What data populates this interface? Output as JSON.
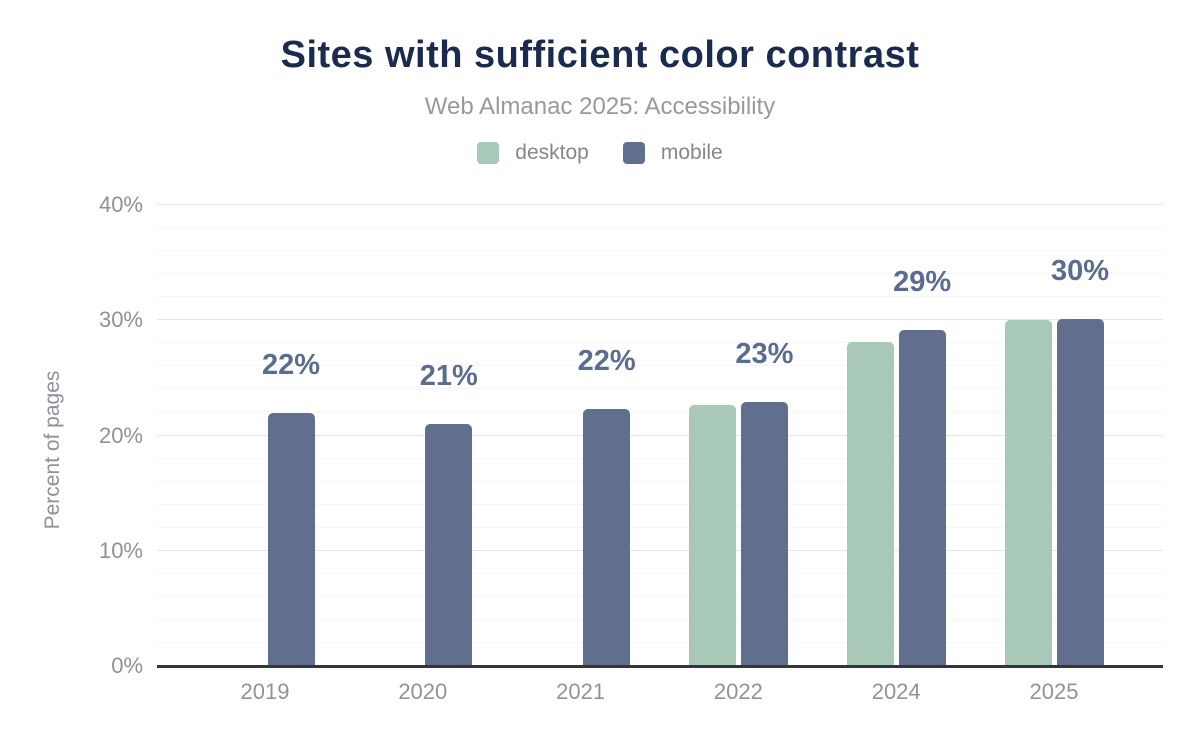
{
  "header": {
    "title": "Sites with sufficient color contrast",
    "subtitle": "Web Almanac 2025: Accessibility"
  },
  "legend": {
    "items": [
      {
        "label": "desktop",
        "color": "#a8c9b8"
      },
      {
        "label": "mobile",
        "color": "#5f6f8d"
      }
    ]
  },
  "colors": {
    "title_text": "#1b2b4d",
    "subtitle_text": "#98999d",
    "axis_text": "#8d9199",
    "data_label_text": "#5a6c8f",
    "axis_line": "#35353a",
    "grid_major": "#e4e4e7",
    "grid_minor": "#f5f5f7",
    "desktop_bar": "#a8c9b8",
    "mobile_bar": "#5f6f8d"
  },
  "chart_data": {
    "type": "bar",
    "title": "Sites with sufficient color contrast",
    "subtitle": "Web Almanac 2025: Accessibility",
    "xlabel": "",
    "ylabel": "Percent of pages",
    "ylim": [
      0,
      40
    ],
    "y_ticks": [
      0,
      10,
      20,
      30,
      40
    ],
    "y_tick_suffix": "%",
    "minor_grid_step": 2,
    "grid": true,
    "legend_position": "top",
    "categories": [
      "2019",
      "2020",
      "2021",
      "2022",
      "2024",
      "2025"
    ],
    "series": [
      {
        "name": "desktop",
        "color": "#a8c9b8",
        "values": [
          null,
          null,
          null,
          22.6,
          28.0,
          29.9
        ]
      },
      {
        "name": "mobile",
        "color": "#5f6f8d",
        "values": [
          21.9,
          20.9,
          22.2,
          22.8,
          29.1,
          30.0
        ]
      }
    ],
    "bar_labels": [
      "22%",
      "21%",
      "22%",
      "23%",
      "29%",
      "30%"
    ],
    "bar_labels_series": "mobile"
  }
}
